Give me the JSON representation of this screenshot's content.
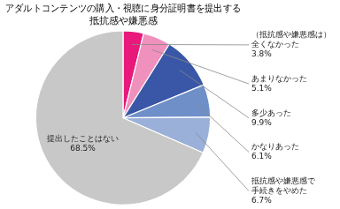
{
  "chart_data": {
    "type": "pie",
    "title": "アダルトコンテンツの購入・視聴に身分証明書を提出する\n抵抗感や嫌悪感",
    "categories": [
      "（抵抗感や嫌悪感は）\n全くなかった",
      "あまりなかった",
      "多少あった",
      "かなりあった",
      "抵抗感や嫌悪感で\n手続きをやめた",
      "提出したことはない"
    ],
    "values": [
      3.8,
      5.1,
      9.9,
      6.1,
      6.7,
      68.5
    ],
    "value_labels": [
      "3.8%",
      "5.1%",
      "9.9%",
      "6.1%",
      "6.7%",
      "68.5%"
    ],
    "data_labels": true,
    "colors": [
      "#e8197a",
      "#f090bc",
      "#3a57a7",
      "#6f8fc9",
      "#9ab0d8",
      "#c8c8c8"
    ],
    "legend": false
  }
}
